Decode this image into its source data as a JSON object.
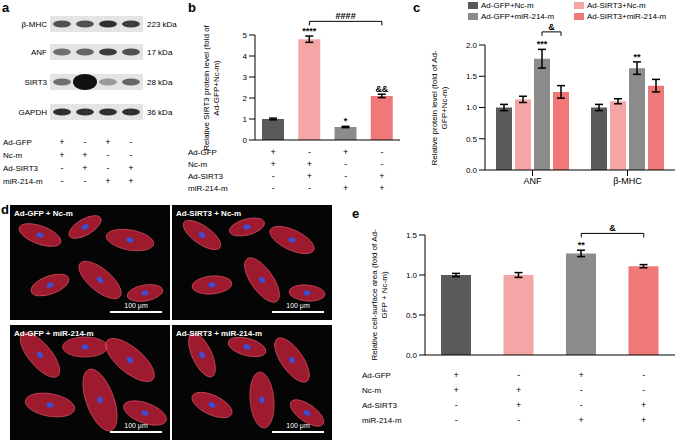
{
  "panel_labels": [
    "a",
    "b",
    "c",
    "d",
    "e"
  ],
  "conditions": [
    {
      "name": "Ad-GFP",
      "signs": [
        "+",
        "-",
        "+",
        "-"
      ]
    },
    {
      "name": "Nc-m",
      "signs": [
        "+",
        "+",
        "-",
        "-"
      ]
    },
    {
      "name": "Ad-SIRT3",
      "signs": [
        "-",
        "+",
        "-",
        "+"
      ]
    },
    {
      "name": "miR-214-m",
      "signs": [
        "-",
        "-",
        "+",
        "+"
      ]
    }
  ],
  "blot": {
    "bands": [
      {
        "label": "β-MHC",
        "size": "223 kDa"
      },
      {
        "label": "ANF",
        "size": "17 kDa"
      },
      {
        "label": "SIRT3",
        "size": "28 kDa"
      },
      {
        "label": "GAPDH",
        "size": "36 kDa"
      }
    ]
  },
  "chart_data": [
    {
      "type": "bar",
      "ylabel": "Relative SIRT3 protein level (fold of Ad-GFP+Nc-m)",
      "categories": [
        null,
        null,
        null,
        null
      ],
      "values": [
        1.0,
        4.8,
        0.62,
        2.1
      ],
      "errors": [
        0.04,
        0.15,
        0.03,
        0.08
      ],
      "colors": [
        "#5a5a5a",
        "#f4a6a6",
        "#8c8c8c",
        "#f07878"
      ],
      "marks": [
        null,
        "****",
        "*",
        "&&"
      ],
      "brackets": [
        {
          "between": [
            1,
            3
          ],
          "label": "####"
        }
      ],
      "ylim": [
        0,
        5
      ],
      "yticks": [
        0,
        1,
        2,
        3,
        4,
        5
      ]
    },
    {
      "type": "bar",
      "ylabel": "Relative protein level (fold of Ad-GFP+Nc-m)",
      "categories": [
        "ANF",
        "β-MHC"
      ],
      "series": [
        {
          "name": "Ad-GFP+Nc-m",
          "color": "#595959",
          "values": [
            1.0,
            1.0
          ],
          "errors": [
            0.05,
            0.05
          ],
          "marks": [
            null,
            null
          ]
        },
        {
          "name": "Ad-SIRT3+Nc-m",
          "color": "#f4a6a6",
          "values": [
            1.13,
            1.1
          ],
          "errors": [
            0.05,
            0.04
          ],
          "marks": [
            null,
            null
          ]
        },
        {
          "name": "Ad-GFP+miR-214-m",
          "color": "#8c8c8c",
          "values": [
            1.78,
            1.63
          ],
          "errors": [
            0.15,
            0.1
          ],
          "marks": [
            "***",
            "**"
          ]
        },
        {
          "name": "Ad-SIRT3+miR-214-m",
          "color": "#f07878",
          "values": [
            1.25,
            1.35
          ],
          "errors": [
            0.1,
            0.1
          ],
          "marks": [
            null,
            null
          ]
        }
      ],
      "brackets": [
        {
          "category": 0,
          "between": [
            2,
            3
          ],
          "label": "&"
        }
      ],
      "legend": "top",
      "ylim": [
        0,
        2
      ],
      "yticks": [
        {
          "value": 0,
          "label": "0.0"
        },
        0.5,
        {
          "value": 1,
          "label": "1.0"
        },
        1.5,
        {
          "value": 2,
          "label": "2.0"
        }
      ]
    },
    {
      "type": "bar",
      "ylabel": "Relative cell-surface area (fold of Ad-GFP + Nc-m)",
      "categories": [
        null,
        null,
        null,
        null
      ],
      "values": [
        1.0,
        1.0,
        1.27,
        1.11
      ],
      "errors": [
        0.02,
        0.03,
        0.04,
        0.02
      ],
      "colors": [
        "#5a5a5a",
        "#f4a6a6",
        "#8c8c8c",
        "#f07878"
      ],
      "marks": [
        null,
        null,
        "**",
        null
      ],
      "brackets": [
        {
          "between": [
            2,
            3
          ],
          "label": "&"
        }
      ],
      "ylim": [
        0,
        1.5
      ],
      "yticks": [
        {
          "value": 0,
          "label": "0.0"
        },
        0.5,
        {
          "value": 1,
          "label": "1.0"
        },
        1.5
      ]
    }
  ],
  "micrographs": {
    "panels": [
      "Ad-GFP + Nc-m",
      "Ad-SIRT3 + Nc-m",
      "Ad-GFP + miR-214-m",
      "Ad-SIRT3 + miR-214-m"
    ],
    "scale_bar": "100 μm"
  }
}
